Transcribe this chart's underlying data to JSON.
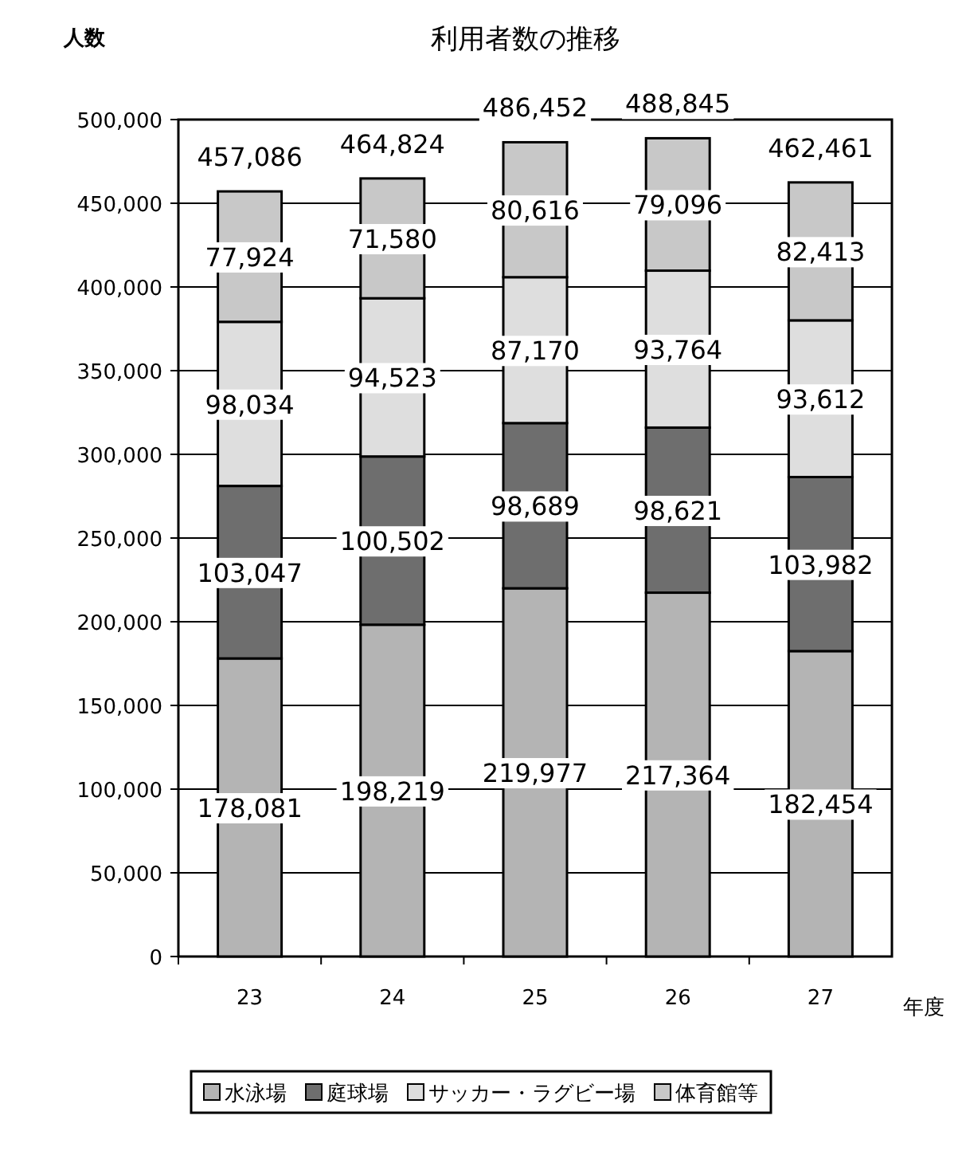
{
  "chart_data": {
    "type": "bar",
    "title": "利用者数の推移",
    "ylabel": "人数",
    "xlabel": "年度",
    "categories": [
      "23",
      "24",
      "25",
      "26",
      "27"
    ],
    "stacked": true,
    "grid": "y",
    "legend": "bottom",
    "ylim": [
      0,
      500000
    ],
    "yticks": [
      {
        "value": 0,
        "label": "0"
      },
      {
        "value": 50000,
        "label": "50,000"
      },
      {
        "value": 100000,
        "label": "100,000"
      },
      {
        "value": 150000,
        "label": "150,000"
      },
      {
        "value": 200000,
        "label": "200,000"
      },
      {
        "value": 250000,
        "label": "250,000"
      },
      {
        "value": 300000,
        "label": "300,000"
      },
      {
        "value": 350000,
        "label": "350,000"
      },
      {
        "value": 400000,
        "label": "400,000"
      },
      {
        "value": 450000,
        "label": "450,000"
      },
      {
        "value": 500000,
        "label": "500,000"
      }
    ],
    "series": [
      {
        "name": "水泳場",
        "color": "#b4b4b4",
        "values": [
          178081,
          198219,
          219977,
          217364,
          182454
        ],
        "value_labels": [
          "178,081",
          "198,219",
          "219,977",
          "217,364",
          "182,454"
        ]
      },
      {
        "name": "庭球場",
        "color": "#6e6e6e",
        "values": [
          103047,
          100502,
          98689,
          98621,
          103982
        ],
        "value_labels": [
          "103,047",
          "100,502",
          "98,689",
          "98,621",
          "103,982"
        ]
      },
      {
        "name": "サッカー・ラグビー場",
        "color": "#dedede",
        "values": [
          98034,
          94523,
          87170,
          93764,
          93612
        ],
        "value_labels": [
          "98,034",
          "94,523",
          "87,170",
          "93,764",
          "93,612"
        ]
      },
      {
        "name": "体育館等",
        "color": "#c8c8c8",
        "values": [
          77924,
          71580,
          80616,
          79096,
          82413
        ],
        "value_labels": [
          "77,924",
          "71,580",
          "80,616",
          "79,096",
          "82,413"
        ]
      }
    ],
    "totals": [
      "457,086",
      "464,824",
      "486,452",
      "488,845",
      "462,461"
    ]
  }
}
